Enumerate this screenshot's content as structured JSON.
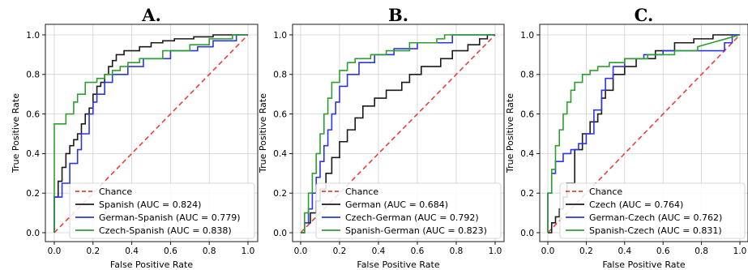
{
  "chart_data": [
    {
      "type": "line",
      "title": "A.",
      "xlabel": "False Positive Rate",
      "ylabel": "True Positive Rate",
      "xlim": [
        0,
        1
      ],
      "ylim": [
        0,
        1
      ],
      "xticks": [
        "0.0",
        "0.2",
        "0.4",
        "0.6",
        "0.8",
        "1.0"
      ],
      "yticks": [
        "0.0",
        "0.2",
        "0.4",
        "0.6",
        "0.8",
        "1.0"
      ],
      "grid": true,
      "legend_position": "lower-right",
      "series": [
        {
          "name": "Chance",
          "color": "#e8403a",
          "dashed": true,
          "x": [
            0,
            1
          ],
          "y": [
            0,
            1
          ]
        },
        {
          "name": "Spanish (AUC = 0.824)",
          "color": "#1a1a1a",
          "dashed": false,
          "x": [
            0,
            0,
            0.02,
            0.02,
            0.04,
            0.04,
            0.06,
            0.06,
            0.08,
            0.08,
            0.1,
            0.1,
            0.12,
            0.12,
            0.14,
            0.14,
            0.16,
            0.16,
            0.18,
            0.18,
            0.2,
            0.2,
            0.22,
            0.22,
            0.24,
            0.24,
            0.26,
            0.26,
            0.28,
            0.28,
            0.3,
            0.3,
            0.32,
            0.32,
            0.36,
            0.36,
            0.44,
            0.44,
            0.5,
            0.5,
            0.56,
            0.56,
            0.62,
            0.62,
            0.72,
            0.72,
            0.82,
            0.82,
            1
          ],
          "y": [
            0,
            0.18,
            0.18,
            0.26,
            0.26,
            0.33,
            0.33,
            0.4,
            0.4,
            0.44,
            0.44,
            0.47,
            0.47,
            0.5,
            0.5,
            0.55,
            0.55,
            0.6,
            0.6,
            0.63,
            0.63,
            0.7,
            0.7,
            0.74,
            0.74,
            0.76,
            0.76,
            0.8,
            0.8,
            0.84,
            0.84,
            0.87,
            0.87,
            0.9,
            0.9,
            0.92,
            0.92,
            0.94,
            0.94,
            0.96,
            0.96,
            0.97,
            0.97,
            0.98,
            0.98,
            0.99,
            0.99,
            1,
            1
          ]
        },
        {
          "name": "German-Spanish (AUC = 0.779)",
          "color": "#2b35e8",
          "dashed": false,
          "x": [
            0,
            0,
            0.04,
            0.04,
            0.08,
            0.08,
            0.12,
            0.12,
            0.14,
            0.14,
            0.18,
            0.18,
            0.2,
            0.2,
            0.22,
            0.22,
            0.26,
            0.26,
            0.3,
            0.3,
            0.38,
            0.38,
            0.46,
            0.46,
            0.6,
            0.6,
            0.74,
            0.74,
            0.82,
            0.82,
            0.94,
            0.94,
            1
          ],
          "y": [
            0,
            0.18,
            0.18,
            0.25,
            0.25,
            0.35,
            0.35,
            0.42,
            0.42,
            0.5,
            0.5,
            0.6,
            0.6,
            0.66,
            0.66,
            0.7,
            0.7,
            0.76,
            0.76,
            0.8,
            0.8,
            0.84,
            0.84,
            0.88,
            0.88,
            0.92,
            0.92,
            0.94,
            0.94,
            0.97,
            0.97,
            1,
            1
          ]
        },
        {
          "name": "Czech-Spanish (AUC = 0.838)",
          "color": "#2e9e2e",
          "dashed": false,
          "x": [
            0,
            0,
            0.06,
            0.06,
            0.1,
            0.1,
            0.12,
            0.12,
            0.16,
            0.16,
            0.22,
            0.22,
            0.26,
            0.26,
            0.3,
            0.3,
            0.34,
            0.34,
            0.38,
            0.38,
            0.44,
            0.44,
            0.56,
            0.56,
            0.7,
            0.7,
            0.8,
            0.8,
            0.92,
            0.92,
            1
          ],
          "y": [
            0,
            0.55,
            0.55,
            0.6,
            0.6,
            0.66,
            0.66,
            0.7,
            0.7,
            0.76,
            0.76,
            0.78,
            0.78,
            0.8,
            0.8,
            0.82,
            0.82,
            0.84,
            0.84,
            0.86,
            0.86,
            0.88,
            0.88,
            0.92,
            0.92,
            0.95,
            0.95,
            0.98,
            0.98,
            1,
            1
          ]
        }
      ]
    },
    {
      "type": "line",
      "title": "B.",
      "xlabel": "False Positive Rate",
      "ylabel": "True Positive Rate",
      "xlim": [
        0,
        1
      ],
      "ylim": [
        0,
        1
      ],
      "xticks": [
        "0.0",
        "0.2",
        "0.4",
        "0.6",
        "0.8",
        "1.0"
      ],
      "yticks": [
        "0.0",
        "0.2",
        "0.4",
        "0.6",
        "0.8",
        "1.0"
      ],
      "grid": true,
      "legend_position": "lower-right",
      "series": [
        {
          "name": "Chance",
          "color": "#e8403a",
          "dashed": true,
          "x": [
            0,
            1
          ],
          "y": [
            0,
            1
          ]
        },
        {
          "name": "German (AUC = 0.684)",
          "color": "#1a1a1a",
          "dashed": false,
          "x": [
            0,
            0.02,
            0.02,
            0.05,
            0.05,
            0.08,
            0.08,
            0.1,
            0.1,
            0.13,
            0.13,
            0.16,
            0.16,
            0.2,
            0.2,
            0.24,
            0.24,
            0.28,
            0.28,
            0.32,
            0.32,
            0.38,
            0.38,
            0.44,
            0.44,
            0.52,
            0.52,
            0.56,
            0.56,
            0.62,
            0.62,
            0.72,
            0.72,
            0.78,
            0.78,
            0.86,
            0.86,
            0.92,
            0.92,
            0.96,
            0.96,
            1
          ],
          "y": [
            0,
            0,
            0.05,
            0.05,
            0.1,
            0.1,
            0.16,
            0.16,
            0.22,
            0.22,
            0.3,
            0.3,
            0.38,
            0.38,
            0.46,
            0.46,
            0.52,
            0.52,
            0.58,
            0.58,
            0.64,
            0.64,
            0.68,
            0.68,
            0.72,
            0.72,
            0.76,
            0.76,
            0.8,
            0.8,
            0.84,
            0.84,
            0.88,
            0.88,
            0.92,
            0.92,
            0.95,
            0.95,
            0.98,
            0.98,
            1,
            1
          ]
        },
        {
          "name": "Czech-German (AUC = 0.792)",
          "color": "#2b35e8",
          "dashed": false,
          "x": [
            0,
            0.02,
            0.02,
            0.04,
            0.04,
            0.06,
            0.06,
            0.08,
            0.08,
            0.1,
            0.1,
            0.12,
            0.12,
            0.14,
            0.14,
            0.16,
            0.16,
            0.18,
            0.18,
            0.2,
            0.2,
            0.24,
            0.24,
            0.3,
            0.3,
            0.38,
            0.38,
            0.48,
            0.48,
            0.6,
            0.6,
            0.78,
            0.78,
            1
          ],
          "y": [
            0,
            0,
            0.05,
            0.05,
            0.12,
            0.12,
            0.2,
            0.2,
            0.28,
            0.28,
            0.36,
            0.36,
            0.44,
            0.44,
            0.52,
            0.52,
            0.6,
            0.6,
            0.66,
            0.66,
            0.74,
            0.74,
            0.8,
            0.8,
            0.86,
            0.86,
            0.9,
            0.9,
            0.93,
            0.93,
            0.96,
            0.96,
            1,
            1
          ]
        },
        {
          "name": "Spanish-German (AUC = 0.823)",
          "color": "#2e9e2e",
          "dashed": false,
          "x": [
            0,
            0.02,
            0.02,
            0.04,
            0.04,
            0.06,
            0.06,
            0.08,
            0.08,
            0.1,
            0.1,
            0.12,
            0.12,
            0.14,
            0.14,
            0.16,
            0.16,
            0.2,
            0.2,
            0.24,
            0.24,
            0.28,
            0.28,
            0.36,
            0.36,
            0.44,
            0.44,
            0.56,
            0.56,
            0.7,
            0.7,
            0.74,
            0.74,
            1
          ],
          "y": [
            0,
            0,
            0.1,
            0.1,
            0.2,
            0.2,
            0.3,
            0.3,
            0.4,
            0.4,
            0.5,
            0.5,
            0.6,
            0.6,
            0.68,
            0.68,
            0.76,
            0.76,
            0.82,
            0.82,
            0.86,
            0.86,
            0.88,
            0.88,
            0.9,
            0.9,
            0.92,
            0.92,
            0.96,
            0.96,
            0.98,
            0.98,
            1,
            1
          ]
        }
      ]
    },
    {
      "type": "line",
      "title": "C.",
      "xlabel": "False Positive Rate",
      "ylabel": "True Positive Rate",
      "xlim": [
        0,
        1
      ],
      "ylim": [
        0,
        1
      ],
      "xticks": [
        "0.0",
        "0.2",
        "0.4",
        "0.6",
        "0.8",
        "1.0"
      ],
      "yticks": [
        "0.0",
        "0.2",
        "0.4",
        "0.6",
        "0.8",
        "1.0"
      ],
      "grid": true,
      "legend_position": "lower-right",
      "series": [
        {
          "name": "Chance",
          "color": "#e8403a",
          "dashed": true,
          "x": [
            0,
            1
          ],
          "y": [
            0,
            1
          ]
        },
        {
          "name": "Czech (AUC = 0.764)",
          "color": "#1a1a1a",
          "dashed": false,
          "x": [
            0,
            0.02,
            0.02,
            0.04,
            0.04,
            0.06,
            0.06,
            0.08,
            0.08,
            0.1,
            0.1,
            0.14,
            0.14,
            0.18,
            0.18,
            0.22,
            0.22,
            0.26,
            0.26,
            0.28,
            0.28,
            0.3,
            0.3,
            0.34,
            0.34,
            0.4,
            0.4,
            0.46,
            0.46,
            0.56,
            0.56,
            0.66,
            0.66,
            0.76,
            0.76,
            0.86,
            0.86,
            1
          ],
          "y": [
            0,
            0,
            0.05,
            0.05,
            0.08,
            0.08,
            0.12,
            0.12,
            0.18,
            0.18,
            0.25,
            0.25,
            0.42,
            0.42,
            0.5,
            0.5,
            0.56,
            0.56,
            0.6,
            0.6,
            0.68,
            0.68,
            0.72,
            0.72,
            0.8,
            0.8,
            0.84,
            0.84,
            0.88,
            0.88,
            0.92,
            0.92,
            0.96,
            0.96,
            0.98,
            0.98,
            1,
            1
          ]
        },
        {
          "name": "German-Czech (AUC = 0.762)",
          "color": "#2b35e8",
          "dashed": false,
          "x": [
            0,
            0,
            0.02,
            0.02,
            0.04,
            0.04,
            0.08,
            0.08,
            0.12,
            0.12,
            0.16,
            0.16,
            0.2,
            0.2,
            0.24,
            0.24,
            0.28,
            0.28,
            0.3,
            0.3,
            0.34,
            0.34,
            0.4,
            0.4,
            0.5,
            0.5,
            0.6,
            0.6,
            0.74,
            0.74,
            0.92,
            0.92,
            0.96,
            0.96,
            1
          ],
          "y": [
            0,
            0.2,
            0.2,
            0.3,
            0.3,
            0.36,
            0.36,
            0.4,
            0.4,
            0.42,
            0.42,
            0.45,
            0.45,
            0.5,
            0.5,
            0.62,
            0.62,
            0.72,
            0.72,
            0.78,
            0.78,
            0.84,
            0.84,
            0.88,
            0.88,
            0.9,
            0.9,
            0.92,
            0.92,
            0.92,
            0.92,
            0.96,
            0.96,
            1,
            1
          ]
        },
        {
          "name": "Spanish-Czech (AUC = 0.831)",
          "color": "#2e9e2e",
          "dashed": false,
          "x": [
            0,
            0,
            0.02,
            0.02,
            0.04,
            0.04,
            0.06,
            0.06,
            0.08,
            0.08,
            0.1,
            0.1,
            0.12,
            0.12,
            0.14,
            0.14,
            0.18,
            0.18,
            0.22,
            0.22,
            0.26,
            0.26,
            0.32,
            0.32,
            0.4,
            0.4,
            0.52,
            0.52,
            0.66,
            0.66,
            0.78,
            0.78,
            1
          ],
          "y": [
            0,
            0.2,
            0.2,
            0.32,
            0.32,
            0.44,
            0.44,
            0.52,
            0.52,
            0.6,
            0.6,
            0.66,
            0.66,
            0.72,
            0.72,
            0.76,
            0.76,
            0.8,
            0.8,
            0.82,
            0.82,
            0.84,
            0.84,
            0.86,
            0.86,
            0.88,
            0.88,
            0.9,
            0.9,
            0.92,
            0.92,
            0.94,
            1
          ]
        }
      ]
    }
  ]
}
